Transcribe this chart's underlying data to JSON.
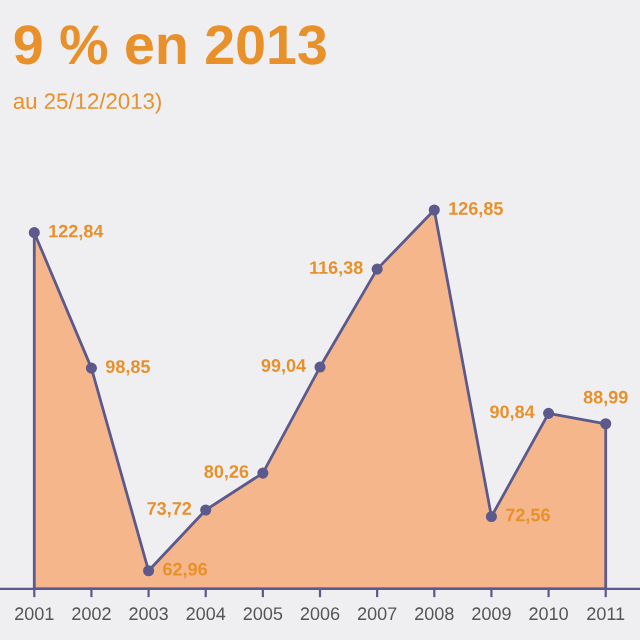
{
  "chart_data": {
    "type": "area",
    "title": "9 % en 2013",
    "subtitle": "au 25/12/2013)",
    "categories": [
      "2001",
      "2002",
      "2003",
      "2004",
      "2005",
      "2006",
      "2007",
      "2008",
      "2009",
      "2010",
      "2011"
    ],
    "series": [
      {
        "color": "#f4b68a",
        "values": [
          122.84,
          98.85,
          62.96,
          73.72,
          80.26,
          99.04,
          116.38,
          126.85,
          72.56,
          90.84,
          88.99
        ],
        "value_labels": [
          "122,84",
          "98,85",
          "62,96",
          "73,72",
          "80,26",
          "99,04",
          "116,38",
          "126,85",
          "72,56",
          "90,84",
          "88,99"
        ]
      }
    ],
    "marker": "circle",
    "grid": false,
    "legend": false
  }
}
